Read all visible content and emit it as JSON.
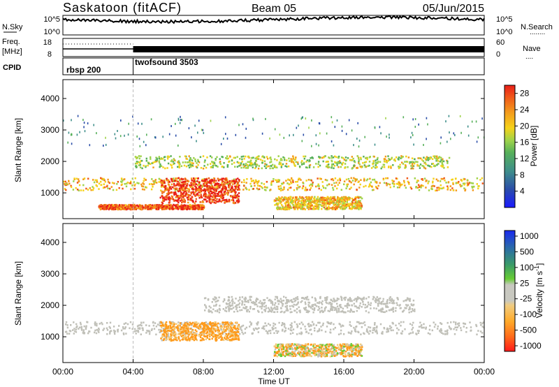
{
  "header": {
    "radar": "Saskatoon (fitACF)",
    "beam": "Beam 05",
    "date": "05/Jun/2015"
  },
  "noise_panel": {
    "left_label": "N.Sky",
    "right_label": "N.Search",
    "right_legend": "........",
    "yticks_left": [
      "10^5",
      "10^0"
    ],
    "yticks_right": [
      "10^5",
      "10^0"
    ]
  },
  "freq_panel": {
    "left_label_1": "Freq.",
    "left_label_2": "[MHz]",
    "right_label": "Nave",
    "right_legend": "....",
    "yticks_left": [
      "18",
      "8"
    ],
    "yticks_right": [
      "60",
      "0"
    ]
  },
  "cpid_panel": {
    "label": "CPID",
    "modes": [
      "rbsp 200",
      "twofsound 3503"
    ]
  },
  "colors": {
    "power_scale": [
      "#1a1aff",
      "#2b4ea8",
      "#3f8f8a",
      "#57b05a",
      "#9fd34a",
      "#f5d21a",
      "#f39a1c",
      "#f05a1a",
      "#e81e18"
    ],
    "velocity_scale": [
      "#ff1a1a",
      "#ff6a1a",
      "#ffaa2a",
      "#f0cc80",
      "#c8c8c0",
      "#c8c8c0",
      "#66cc33",
      "#3a9a6a",
      "#2a6aaa",
      "#1a2aee"
    ],
    "ground_scatter": "#c0c0b8"
  },
  "chart_data": [
    {
      "type": "heatmap",
      "title": "Power",
      "xlabel": "",
      "ylabel": "Slant Range [km]",
      "x_ticks": [
        "00:00",
        "04:00",
        "08:00",
        "12:00",
        "16:00",
        "20:00",
        "00:00"
      ],
      "x_range_hours": [
        0,
        24
      ],
      "y_ticks": [
        "1000",
        "2000",
        "3000",
        "4000"
      ],
      "y_range_km": [
        180,
        4600
      ],
      "colorbar": {
        "label": "Power [dB]",
        "ticks": [
          "4",
          "8",
          "12",
          "16",
          "20",
          "24",
          "28"
        ],
        "range": [
          0,
          30
        ]
      },
      "features": [
        {
          "desc": "main band",
          "t_start": 0,
          "t_end": 24,
          "range_km": [
            1100,
            1500
          ],
          "power_db": 20
        },
        {
          "desc": "strong burst",
          "t_start": 5.5,
          "t_end": 10,
          "range_km": [
            700,
            1500
          ],
          "power_db": 28
        },
        {
          "desc": "upper band",
          "t_start": 4,
          "t_end": 22,
          "range_km": [
            1800,
            2200
          ],
          "power_db": 16
        },
        {
          "desc": "near-range band",
          "t_start": 2,
          "t_end": 8,
          "range_km": [
            500,
            650
          ],
          "power_db": 26
        },
        {
          "desc": "afternoon band",
          "t_start": 12,
          "t_end": 17,
          "range_km": [
            500,
            900
          ],
          "power_db": 20
        },
        {
          "desc": "sparse far-range echoes",
          "t_start": 0,
          "t_end": 24,
          "range_km": [
            2500,
            3500
          ],
          "power_db": 8
        }
      ]
    },
    {
      "type": "heatmap",
      "title": "Velocity",
      "xlabel": "Time UT",
      "ylabel": "Slant Range [km]",
      "x_ticks": [
        "00:00",
        "04:00",
        "08:00",
        "12:00",
        "16:00",
        "20:00",
        "00:00"
      ],
      "x_range_hours": [
        0,
        24
      ],
      "y_ticks": [
        "1000",
        "2000",
        "3000",
        "4000"
      ],
      "y_range_km": [
        180,
        4600
      ],
      "colorbar": {
        "label": "Velocity [m s^-1]",
        "ticks": [
          "1000",
          "500",
          "100",
          "25",
          "-25",
          "-100",
          "-500",
          "-1000"
        ],
        "range": [
          -1000,
          1000
        ]
      },
      "features": [
        {
          "desc": "ground scatter band",
          "t_start": 0,
          "t_end": 24,
          "range_km": [
            1100,
            1500
          ],
          "velocity": 0
        },
        {
          "desc": "flow burst",
          "t_start": 5.5,
          "t_end": 10,
          "range_km": [
            900,
            1500
          ],
          "velocity": -150
        },
        {
          "desc": "upper ground scatter",
          "t_start": 8,
          "t_end": 20,
          "range_km": [
            1800,
            2300
          ],
          "velocity": 0
        },
        {
          "desc": "afternoon scatter",
          "t_start": 12,
          "t_end": 17,
          "range_km": [
            400,
            800
          ],
          "velocity": -60
        }
      ]
    }
  ]
}
